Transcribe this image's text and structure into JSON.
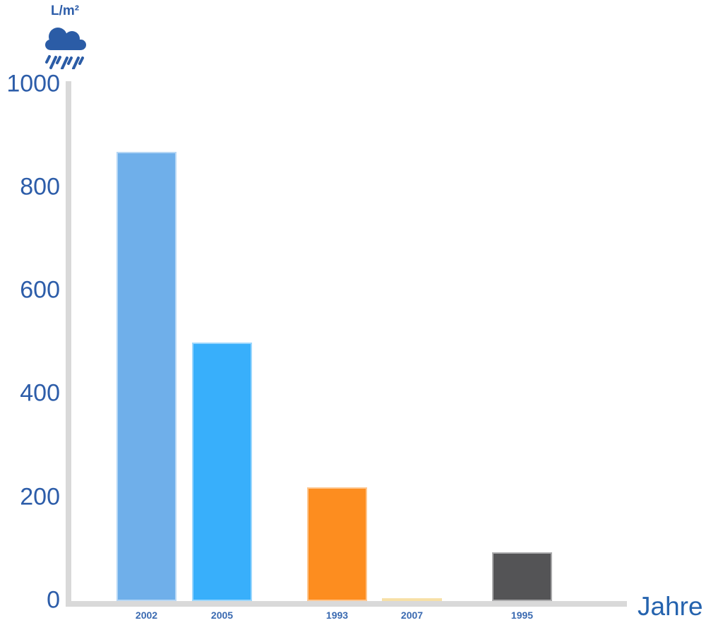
{
  "unit_label": "L/m²",
  "x_axis_label": "Jahre",
  "colors": {
    "axis": "#d9d9d9",
    "tick_text": "#2d5da9",
    "year_text": "#3a6ab1",
    "axis_title_text": "#2563ae",
    "cloud": "#2b5ca6",
    "bar_border": "rgba(255,255,255,0.5)"
  },
  "icons": {
    "rain_cloud": "rain-cloud-icon"
  },
  "chart_data": {
    "type": "bar",
    "categories": [
      "2002",
      "2005",
      "1993",
      "2007",
      "1995"
    ],
    "values": [
      870,
      500,
      220,
      5,
      95
    ],
    "bar_colors": [
      "#6FAFEA",
      "#38AFFB",
      "#FD8D1F",
      "#EFC04F",
      "#545456"
    ],
    "title": "",
    "xlabel": "Jahre",
    "ylabel": "L/m²",
    "ylim": [
      0,
      1000
    ],
    "yticks": [
      0,
      200,
      400,
      600,
      800,
      1000
    ],
    "grid": false,
    "legend": false
  }
}
